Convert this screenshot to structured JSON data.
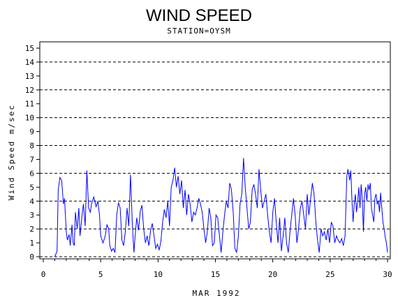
{
  "chart_data": {
    "type": "line",
    "title": "WIND SPEED",
    "subtitle": "STATION=OYSM",
    "xlabel": "MAR 1992",
    "ylabel": "Wind Speed m/sec",
    "xlim": [
      0,
      30
    ],
    "ylim": [
      0,
      15
    ],
    "x_ticks": [
      0,
      5,
      10,
      15,
      20,
      25,
      30
    ],
    "y_ticks": [
      0,
      1,
      2,
      3,
      4,
      5,
      6,
      7,
      8,
      9,
      10,
      11,
      12,
      13,
      14,
      15
    ],
    "reference_lines": [
      0,
      2,
      4,
      6,
      8,
      10,
      12,
      14
    ],
    "colors": {
      "series": "#0000ff",
      "axis": "#000000"
    },
    "series": [
      {
        "values": [
          [
            1.0,
            0.0
          ],
          [
            1.1,
            0.2
          ],
          [
            1.2,
            0.4
          ],
          [
            1.3,
            4.8
          ],
          [
            1.45,
            5.7
          ],
          [
            1.6,
            5.5
          ],
          [
            1.75,
            3.8
          ],
          [
            1.85,
            4.2
          ],
          [
            2.0,
            1.8
          ],
          [
            2.1,
            1.2
          ],
          [
            2.25,
            1.6
          ],
          [
            2.35,
            0.8
          ],
          [
            2.5,
            2.3
          ],
          [
            2.6,
            1.0
          ],
          [
            2.7,
            0.8
          ],
          [
            2.8,
            3.2
          ],
          [
            2.95,
            2.0
          ],
          [
            3.1,
            3.5
          ],
          [
            3.2,
            1.5
          ],
          [
            3.35,
            2.8
          ],
          [
            3.5,
            3.8
          ],
          [
            3.65,
            2.2
          ],
          [
            3.8,
            6.2
          ],
          [
            3.95,
            3.5
          ],
          [
            4.1,
            3.2
          ],
          [
            4.2,
            3.8
          ],
          [
            4.4,
            4.3
          ],
          [
            4.6,
            3.6
          ],
          [
            4.75,
            4.0
          ],
          [
            4.9,
            3.0
          ],
          [
            5.0,
            1.5
          ],
          [
            5.2,
            1.0
          ],
          [
            5.4,
            1.5
          ],
          [
            5.55,
            2.3
          ],
          [
            5.7,
            2.0
          ],
          [
            5.8,
            0.8
          ],
          [
            5.95,
            0.4
          ],
          [
            6.1,
            0.6
          ],
          [
            6.25,
            0.3
          ],
          [
            6.4,
            3.0
          ],
          [
            6.55,
            3.9
          ],
          [
            6.7,
            3.5
          ],
          [
            6.85,
            1.2
          ],
          [
            7.0,
            0.8
          ],
          [
            7.15,
            1.8
          ],
          [
            7.3,
            3.5
          ],
          [
            7.45,
            2.2
          ],
          [
            7.6,
            5.9
          ],
          [
            7.75,
            2.5
          ],
          [
            7.9,
            0.3
          ],
          [
            8.0,
            1.5
          ],
          [
            8.15,
            2.8
          ],
          [
            8.3,
            1.9
          ],
          [
            8.45,
            3.3
          ],
          [
            8.6,
            3.7
          ],
          [
            8.75,
            2.0
          ],
          [
            8.9,
            1.0
          ],
          [
            9.05,
            1.5
          ],
          [
            9.2,
            0.8
          ],
          [
            9.35,
            1.9
          ],
          [
            9.5,
            2.4
          ],
          [
            9.65,
            1.5
          ],
          [
            9.8,
            0.6
          ],
          [
            9.95,
            0.9
          ],
          [
            10.1,
            0.5
          ],
          [
            10.25,
            1.1
          ],
          [
            10.4,
            2.5
          ],
          [
            10.55,
            3.4
          ],
          [
            10.7,
            2.8
          ],
          [
            10.85,
            4.0
          ],
          [
            11.0,
            2.2
          ],
          [
            11.15,
            5.0
          ],
          [
            11.3,
            5.5
          ],
          [
            11.45,
            6.4
          ],
          [
            11.6,
            5.0
          ],
          [
            11.75,
            5.8
          ],
          [
            11.9,
            4.5
          ],
          [
            12.05,
            5.5
          ],
          [
            12.2,
            3.5
          ],
          [
            12.35,
            4.8
          ],
          [
            12.5,
            3.0
          ],
          [
            12.65,
            4.5
          ],
          [
            12.8,
            3.8
          ],
          [
            12.95,
            2.5
          ],
          [
            13.1,
            3.2
          ],
          [
            13.25,
            3.0
          ],
          [
            13.4,
            3.5
          ],
          [
            13.55,
            4.2
          ],
          [
            13.7,
            3.8
          ],
          [
            13.85,
            3.2
          ],
          [
            14.0,
            2.0
          ],
          [
            14.15,
            1.0
          ],
          [
            14.3,
            1.8
          ],
          [
            14.45,
            3.5
          ],
          [
            14.6,
            2.8
          ],
          [
            14.75,
            0.8
          ],
          [
            14.9,
            1.0
          ],
          [
            15.05,
            3.0
          ],
          [
            15.2,
            2.8
          ],
          [
            15.35,
            1.5
          ],
          [
            15.5,
            0.3
          ],
          [
            15.65,
            1.8
          ],
          [
            15.8,
            3.0
          ],
          [
            15.95,
            4.0
          ],
          [
            16.1,
            3.5
          ],
          [
            16.25,
            5.3
          ],
          [
            16.4,
            4.8
          ],
          [
            16.55,
            3.2
          ],
          [
            16.7,
            0.6
          ],
          [
            16.85,
            0.3
          ],
          [
            17.0,
            1.5
          ],
          [
            17.15,
            3.8
          ],
          [
            17.3,
            4.5
          ],
          [
            17.45,
            7.1
          ],
          [
            17.6,
            5.0
          ],
          [
            17.75,
            3.5
          ],
          [
            17.9,
            2.0
          ],
          [
            18.05,
            2.5
          ],
          [
            18.2,
            4.8
          ],
          [
            18.35,
            5.2
          ],
          [
            18.5,
            4.5
          ],
          [
            18.65,
            3.5
          ],
          [
            18.8,
            6.3
          ],
          [
            18.95,
            4.8
          ],
          [
            19.1,
            3.5
          ],
          [
            19.25,
            4.0
          ],
          [
            19.4,
            4.5
          ],
          [
            19.55,
            3.0
          ],
          [
            19.7,
            1.8
          ],
          [
            19.85,
            1.0
          ],
          [
            20.0,
            3.2
          ],
          [
            20.15,
            4.2
          ],
          [
            20.3,
            2.5
          ],
          [
            20.45,
            1.0
          ],
          [
            20.6,
            2.8
          ],
          [
            20.75,
            0.4
          ],
          [
            20.9,
            1.5
          ],
          [
            21.05,
            2.8
          ],
          [
            21.2,
            1.0
          ],
          [
            21.35,
            0.3
          ],
          [
            21.5,
            1.8
          ],
          [
            21.65,
            3.0
          ],
          [
            21.8,
            4.2
          ],
          [
            21.95,
            3.0
          ],
          [
            22.1,
            1.0
          ],
          [
            22.25,
            2.0
          ],
          [
            22.4,
            3.5
          ],
          [
            22.55,
            4.0
          ],
          [
            22.7,
            3.0
          ],
          [
            22.85,
            2.0
          ],
          [
            23.0,
            4.5
          ],
          [
            23.15,
            3.0
          ],
          [
            23.3,
            4.2
          ],
          [
            23.45,
            5.3
          ],
          [
            23.6,
            4.5
          ],
          [
            23.75,
            2.5
          ],
          [
            23.9,
            1.2
          ],
          [
            24.05,
            0.3
          ],
          [
            24.2,
            2.0
          ],
          [
            24.35,
            1.5
          ],
          [
            24.5,
            1.8
          ],
          [
            24.65,
            1.2
          ],
          [
            24.8,
            2.0
          ],
          [
            24.95,
            1.0
          ],
          [
            25.1,
            2.5
          ],
          [
            25.25,
            2.2
          ],
          [
            25.4,
            1.0
          ],
          [
            25.55,
            1.5
          ],
          [
            25.7,
            1.2
          ],
          [
            25.85,
            1.0
          ],
          [
            26.0,
            1.3
          ],
          [
            26.15,
            0.8
          ],
          [
            26.3,
            1.5
          ],
          [
            26.45,
            5.8
          ],
          [
            26.55,
            6.3
          ],
          [
            26.7,
            5.5
          ],
          [
            26.8,
            6.2
          ],
          [
            26.9,
            4.0
          ],
          [
            27.0,
            2.5
          ],
          [
            27.1,
            3.8
          ],
          [
            27.2,
            4.5
          ],
          [
            27.3,
            3.2
          ],
          [
            27.4,
            4.0
          ],
          [
            27.5,
            5.0
          ],
          [
            27.6,
            3.5
          ],
          [
            27.7,
            5.2
          ],
          [
            27.8,
            4.2
          ],
          [
            27.9,
            1.8
          ],
          [
            28.0,
            4.5
          ],
          [
            28.1,
            5.0
          ],
          [
            28.2,
            4.0
          ],
          [
            28.3,
            5.2
          ],
          [
            28.4,
            4.8
          ],
          [
            28.5,
            5.3
          ],
          [
            28.6,
            3.5
          ],
          [
            28.7,
            3.0
          ],
          [
            28.8,
            2.5
          ],
          [
            28.9,
            4.2
          ],
          [
            29.0,
            4.5
          ],
          [
            29.1,
            3.8
          ],
          [
            29.2,
            4.0
          ],
          [
            29.3,
            3.2
          ],
          [
            29.4,
            4.6
          ],
          [
            29.5,
            3.5
          ],
          [
            29.6,
            2.5
          ],
          [
            29.7,
            2.0
          ],
          [
            29.8,
            1.4
          ],
          [
            29.9,
            1.0
          ],
          [
            30.0,
            0.3
          ]
        ]
      }
    ]
  }
}
